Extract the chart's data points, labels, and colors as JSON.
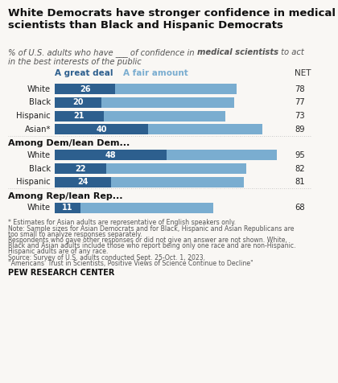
{
  "title": "White Democrats have stronger confidence in medical\nscientists than Black and Hispanic Democrats",
  "subtitle_line1": "% of U.S. adults who have ___ of confidence in ",
  "subtitle_bold": "medical scientists",
  "subtitle_line1_end": " to act",
  "subtitle_line2": "in the best interests of the public",
  "legend_dark": "A great deal",
  "legend_light": "A fair amount",
  "net_label": "NET",
  "sections": [
    {
      "header": null,
      "rows": [
        {
          "label": "White",
          "dark": 26,
          "net": 78
        },
        {
          "label": "Black",
          "dark": 20,
          "net": 77
        },
        {
          "label": "Hispanic",
          "dark": 21,
          "net": 73
        },
        {
          "label": "Asian*",
          "dark": 40,
          "net": 89
        }
      ]
    },
    {
      "header": "Among Dem/lean Dem...",
      "rows": [
        {
          "label": "White",
          "dark": 48,
          "net": 95
        },
        {
          "label": "Black",
          "dark": 22,
          "net": 82
        },
        {
          "label": "Hispanic",
          "dark": 24,
          "net": 81
        }
      ]
    },
    {
      "header": "Among Rep/lean Rep...",
      "rows": [
        {
          "label": "White",
          "dark": 11,
          "net": 68
        }
      ]
    }
  ],
  "color_dark": "#2d5f8e",
  "color_light": "#7aadd0",
  "note_lines": [
    "* Estimates for Asian adults are representative of English speakers only.",
    "Note: Sample sizes for Asian Democrats and for Black, Hispanic and Asian Republicans are",
    "too small to analyze responses separately.",
    "Respondents who gave other responses or did not give an answer are not shown. White,",
    "Black and Asian adults include those who report being only one race and are non-Hispanic.",
    "Hispanic adults are of any race.",
    "Source: Survey of U.S. adults conducted Sept. 25-Oct. 1, 2023.",
    "\"Americans' Trust in Scientists, Positive Views of Science Continue to Decline\""
  ],
  "pew_label": "PEW RESEARCH CENTER",
  "background_color": "#f9f7f4"
}
